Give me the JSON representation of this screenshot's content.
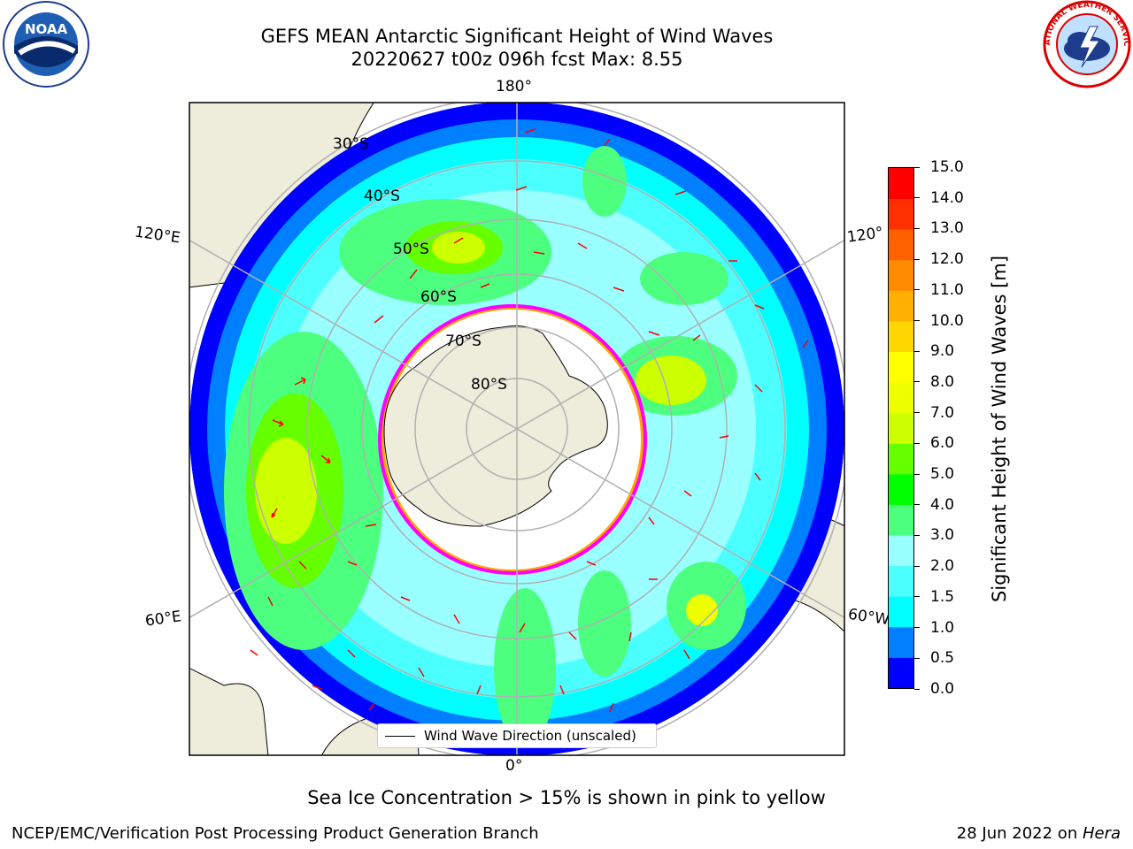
{
  "header": {
    "title_line1": "GEFS MEAN Antarctic Significant Height of Wind Waves",
    "title_line2": "20220627 t00z 096h fcst   Max: 8.55"
  },
  "logos": {
    "left": {
      "name": "noaa-logo",
      "text": "NOAA"
    },
    "right": {
      "name": "national-weather-service-logo",
      "text": "NATIONAL WEATHER SERVICE"
    }
  },
  "map": {
    "projection": "south-polar-stereographic",
    "longitude_labels": {
      "top": "180°",
      "bottom": "0°",
      "upper_left": "120°E",
      "upper_right": "120°",
      "lower_left": "60°E",
      "lower_right": "60°W"
    },
    "latitude_labels": [
      "30°S",
      "40°S",
      "50°S",
      "60°S",
      "70°S",
      "80°S"
    ],
    "legend": {
      "label": "Wind Wave Direction (unscaled)"
    },
    "arrow_color": "#ff0000",
    "land_color": "#eeecdb",
    "ice_edge_colors": [
      "#ff00ff",
      "#ffa500",
      "#ffff00"
    ]
  },
  "colorbar": {
    "label": "Significant Height of Wind Waves [m]",
    "ticks": [
      "15.0",
      "14.0",
      "13.0",
      "12.0",
      "11.0",
      "10.0",
      "9.0",
      "8.0",
      "7.0",
      "6.0",
      "5.0",
      "4.0",
      "3.0",
      "2.0",
      "1.5",
      "1.0",
      "0.5",
      "0.0"
    ],
    "colors": [
      "#0000ff",
      "#007fff",
      "#00ffff",
      "#4cffff",
      "#99ffff",
      "#4cff7f",
      "#00ff00",
      "#66ff00",
      "#ccff00",
      "#eeff00",
      "#ffff00",
      "#ffd700",
      "#ffb000",
      "#ff8c00",
      "#ff6000",
      "#ff3000",
      "#ff0000"
    ]
  },
  "note": "Sea Ice Concentration > 15% is shown in pink to yellow",
  "footer": {
    "left": "NCEP/EMC/Verification Post Processing Product Generation Branch",
    "right_date": "28 Jun 2022 on ",
    "right_machine": "Hera"
  }
}
